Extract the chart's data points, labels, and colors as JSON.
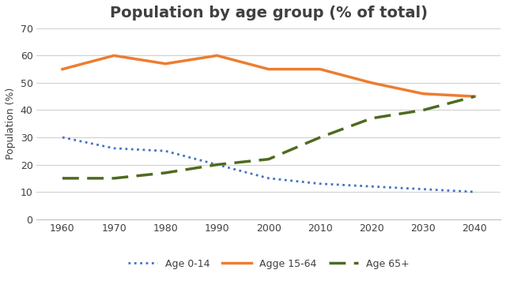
{
  "title": "Population by age group (% of total)",
  "ylabel": "Population (%)",
  "years": [
    1960,
    1970,
    1980,
    1990,
    2000,
    2010,
    2020,
    2030,
    2040
  ],
  "age_0_14": [
    30,
    26,
    25,
    20,
    15,
    13,
    12,
    11,
    10
  ],
  "age_15_64": [
    55,
    60,
    57,
    60,
    55,
    55,
    50,
    46,
    45
  ],
  "age_65plus": [
    15,
    15,
    17,
    20,
    22,
    30,
    37,
    40,
    45
  ],
  "color_0_14": "#4472C4",
  "color_15_64": "#ED7D31",
  "color_65plus": "#4E6B1E",
  "ylim": [
    0,
    70
  ],
  "yticks": [
    0,
    10,
    20,
    30,
    40,
    50,
    60,
    70
  ],
  "xticks": [
    1960,
    1970,
    1980,
    1990,
    2000,
    2010,
    2020,
    2030,
    2040
  ],
  "background_color": "#ffffff",
  "grid_color": "#d0d0d0",
  "title_fontsize": 14,
  "tick_fontsize": 9,
  "axis_label_fontsize": 9,
  "legend_labels": [
    "Age 0-14",
    "Agge 15-64",
    "Age 65+"
  ],
  "title_color": "#404040"
}
